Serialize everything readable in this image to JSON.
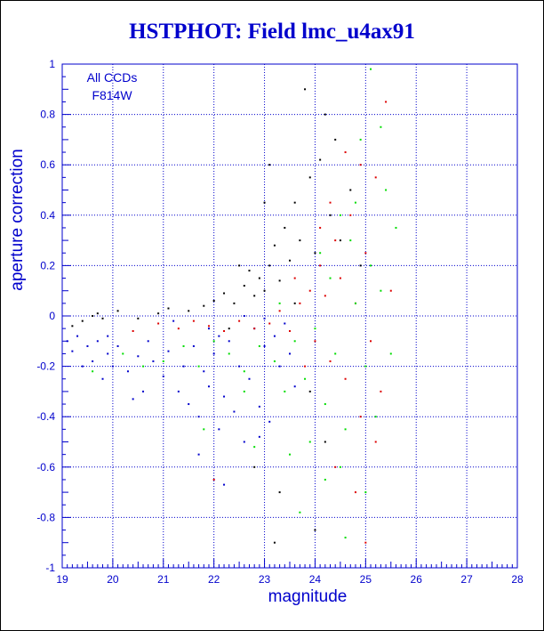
{
  "chart_data": {
    "type": "scatter",
    "title": "HSTPHOT: Field lmc_u4ax91",
    "xlabel": "magnitude",
    "ylabel": "aperture correction",
    "xlim": [
      19,
      28
    ],
    "ylim": [
      -1,
      1
    ],
    "xticks": [
      19,
      20,
      21,
      22,
      23,
      24,
      25,
      26,
      27,
      28
    ],
    "yticks": [
      -1,
      -0.8,
      -0.6,
      -0.4,
      -0.2,
      0,
      0.2,
      0.4,
      0.6,
      0.8,
      1
    ],
    "grid": true,
    "annotations": [
      "All CCDs",
      "F814W"
    ],
    "series": [
      {
        "color": "#000000",
        "points": [
          [
            19.2,
            -0.04
          ],
          [
            19.4,
            -0.02
          ],
          [
            19.6,
            0.0
          ],
          [
            19.7,
            0.01
          ],
          [
            19.8,
            -0.01
          ],
          [
            20.1,
            0.02
          ],
          [
            20.5,
            -0.01
          ],
          [
            20.9,
            0.01
          ],
          [
            21.1,
            0.03
          ],
          [
            21.5,
            0.02
          ],
          [
            21.8,
            0.04
          ],
          [
            22.0,
            0.06
          ],
          [
            22.2,
            0.09
          ],
          [
            22.4,
            0.05
          ],
          [
            22.6,
            0.12
          ],
          [
            22.8,
            0.08
          ],
          [
            22.9,
            0.15
          ],
          [
            23.0,
            0.1
          ],
          [
            23.1,
            0.2
          ],
          [
            23.2,
            0.28
          ],
          [
            23.3,
            0.14
          ],
          [
            23.4,
            0.35
          ],
          [
            23.5,
            0.22
          ],
          [
            23.6,
            0.45
          ],
          [
            23.7,
            0.3
          ],
          [
            23.8,
            0.9
          ],
          [
            23.9,
            0.55
          ],
          [
            24.0,
            0.25
          ],
          [
            24.1,
            0.62
          ],
          [
            24.2,
            0.8
          ],
          [
            24.3,
            0.4
          ],
          [
            24.4,
            0.7
          ],
          [
            24.5,
            0.3
          ],
          [
            24.7,
            0.5
          ],
          [
            24.9,
            0.2
          ],
          [
            23.1,
            0.6
          ],
          [
            23.0,
            0.45
          ],
          [
            22.7,
            0.18
          ],
          [
            22.5,
            0.2
          ],
          [
            23.6,
            0.05
          ],
          [
            22.3,
            -0.05
          ],
          [
            23.9,
            -0.3
          ],
          [
            24.2,
            -0.5
          ],
          [
            23.3,
            -0.7
          ],
          [
            24.0,
            -0.85
          ],
          [
            23.2,
            -0.9
          ],
          [
            22.8,
            -0.6
          ]
        ]
      },
      {
        "color": "#0000cc",
        "points": [
          [
            19.1,
            -0.1
          ],
          [
            19.2,
            -0.14
          ],
          [
            19.3,
            -0.08
          ],
          [
            19.4,
            -0.2
          ],
          [
            19.5,
            -0.12
          ],
          [
            19.6,
            -0.18
          ],
          [
            19.7,
            -0.1
          ],
          [
            19.8,
            -0.25
          ],
          [
            19.9,
            -0.15
          ],
          [
            20.0,
            -0.2
          ],
          [
            20.1,
            -0.12
          ],
          [
            20.3,
            -0.22
          ],
          [
            20.5,
            -0.16
          ],
          [
            20.6,
            -0.3
          ],
          [
            20.8,
            -0.18
          ],
          [
            21.0,
            -0.24
          ],
          [
            21.1,
            -0.14
          ],
          [
            21.3,
            -0.3
          ],
          [
            21.4,
            -0.2
          ],
          [
            21.5,
            -0.35
          ],
          [
            21.6,
            -0.12
          ],
          [
            21.7,
            -0.4
          ],
          [
            21.8,
            -0.22
          ],
          [
            21.9,
            -0.28
          ],
          [
            22.0,
            -0.15
          ],
          [
            22.1,
            -0.45
          ],
          [
            22.2,
            -0.32
          ],
          [
            22.3,
            -0.1
          ],
          [
            22.4,
            -0.38
          ],
          [
            22.5,
            -0.2
          ],
          [
            22.6,
            -0.5
          ],
          [
            22.7,
            -0.25
          ],
          [
            22.8,
            -0.05
          ],
          [
            22.9,
            -0.36
          ],
          [
            23.0,
            -0.12
          ],
          [
            23.1,
            -0.42
          ],
          [
            23.2,
            -0.08
          ],
          [
            23.3,
            -0.2
          ],
          [
            23.4,
            -0.03
          ],
          [
            23.5,
            -0.15
          ],
          [
            23.6,
            -0.28
          ],
          [
            22.2,
            -0.67
          ],
          [
            21.7,
            -0.55
          ],
          [
            22.9,
            -0.48
          ],
          [
            20.4,
            -0.33
          ],
          [
            19.9,
            -0.08
          ],
          [
            21.2,
            -0.02
          ],
          [
            22.6,
            0.0
          ],
          [
            23.0,
            -0.01
          ],
          [
            22.1,
            -0.08
          ],
          [
            20.7,
            -0.1
          ],
          [
            21.9,
            -0.05
          ]
        ]
      },
      {
        "color": "#dd0000",
        "points": [
          [
            20.4,
            -0.06
          ],
          [
            20.9,
            -0.03
          ],
          [
            21.3,
            -0.05
          ],
          [
            21.6,
            -0.02
          ],
          [
            21.9,
            -0.04
          ],
          [
            22.2,
            -0.06
          ],
          [
            22.5,
            -0.02
          ],
          [
            22.8,
            -0.05
          ],
          [
            23.1,
            -0.03
          ],
          [
            23.3,
            0.02
          ],
          [
            23.5,
            -0.06
          ],
          [
            23.7,
            0.05
          ],
          [
            23.9,
            0.1
          ],
          [
            24.0,
            -0.1
          ],
          [
            24.1,
            0.2
          ],
          [
            24.2,
            0.08
          ],
          [
            24.3,
            -0.18
          ],
          [
            24.4,
            0.3
          ],
          [
            24.5,
            0.15
          ],
          [
            24.6,
            -0.25
          ],
          [
            24.7,
            0.4
          ],
          [
            24.8,
            0.05
          ],
          [
            24.9,
            -0.4
          ],
          [
            25.0,
            0.25
          ],
          [
            25.1,
            -0.1
          ],
          [
            25.2,
            0.55
          ],
          [
            25.3,
            -0.3
          ],
          [
            25.4,
            0.85
          ],
          [
            25.5,
            0.1
          ],
          [
            24.4,
            -0.6
          ],
          [
            24.8,
            -0.7
          ],
          [
            25.2,
            -0.5
          ],
          [
            24.1,
            0.35
          ],
          [
            23.8,
            -0.2
          ],
          [
            24.6,
            0.65
          ],
          [
            25.0,
            -0.9
          ],
          [
            24.3,
            0.45
          ],
          [
            23.6,
            0.15
          ],
          [
            22.0,
            -0.65
          ],
          [
            24.9,
            0.6
          ]
        ]
      },
      {
        "color": "#00dd00",
        "points": [
          [
            19.6,
            -0.22
          ],
          [
            20.2,
            -0.15
          ],
          [
            20.6,
            -0.2
          ],
          [
            21.0,
            -0.18
          ],
          [
            21.4,
            -0.12
          ],
          [
            21.7,
            -0.2
          ],
          [
            22.0,
            -0.1
          ],
          [
            22.3,
            -0.15
          ],
          [
            22.6,
            -0.22
          ],
          [
            22.9,
            -0.12
          ],
          [
            23.2,
            -0.18
          ],
          [
            23.4,
            -0.3
          ],
          [
            23.6,
            -0.1
          ],
          [
            23.8,
            -0.25
          ],
          [
            24.0,
            -0.05
          ],
          [
            24.2,
            -0.35
          ],
          [
            24.4,
            -0.15
          ],
          [
            24.6,
            -0.45
          ],
          [
            24.8,
            0.05
          ],
          [
            25.0,
            -0.2
          ],
          [
            25.1,
            0.2
          ],
          [
            25.2,
            -0.4
          ],
          [
            25.3,
            0.1
          ],
          [
            25.4,
            0.5
          ],
          [
            25.5,
            -0.15
          ],
          [
            25.6,
            0.35
          ],
          [
            24.9,
            0.7
          ],
          [
            25.1,
            0.98
          ],
          [
            24.7,
            0.3
          ],
          [
            24.3,
            0.15
          ],
          [
            23.9,
            -0.5
          ],
          [
            23.5,
            -0.55
          ],
          [
            24.5,
            -0.6
          ],
          [
            25.0,
            -0.7
          ],
          [
            24.6,
            -0.88
          ],
          [
            23.7,
            -0.78
          ],
          [
            24.2,
            -0.65
          ],
          [
            22.6,
            -0.3
          ],
          [
            21.8,
            -0.45
          ],
          [
            22.8,
            -0.52
          ],
          [
            24.1,
            0.25
          ],
          [
            25.3,
            0.75
          ],
          [
            24.8,
            0.45
          ],
          [
            23.3,
            0.05
          ],
          [
            24.5,
            0.4
          ]
        ]
      }
    ]
  }
}
